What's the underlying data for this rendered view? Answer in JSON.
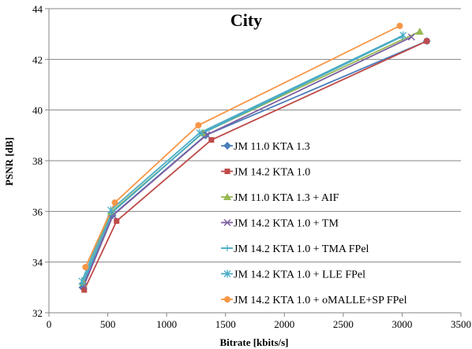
{
  "chart_data": {
    "type": "line",
    "title": "City",
    "xlabel": "Bitrate [kbits/s]",
    "ylabel": "PSNR [dB]",
    "xlim": [
      0,
      3500
    ],
    "ylim": [
      32,
      44
    ],
    "x_ticks": [
      "0",
      "500",
      "1000",
      "1500",
      "2000",
      "2500",
      "3000",
      "3500"
    ],
    "y_ticks": [
      "32",
      "34",
      "36",
      "38",
      "40",
      "42",
      "44"
    ],
    "grid": "horizontal",
    "legend_position": "inside-right",
    "series": [
      {
        "name": "JM 11.0 KTA 1.3",
        "color": "#4a7ebb",
        "marker": "diamond",
        "points": [
          [
            285,
            33.0
          ],
          [
            540,
            35.85
          ],
          [
            1330,
            39.0
          ],
          [
            3210,
            42.72
          ]
        ]
      },
      {
        "name": "JM 14.2 KTA 1.0",
        "color": "#be4b48",
        "marker": "square",
        "points": [
          [
            300,
            32.9
          ],
          [
            575,
            35.62
          ],
          [
            1380,
            38.82
          ],
          [
            3210,
            42.72
          ]
        ]
      },
      {
        "name": "JM 11.0 KTA 1.3 + AIF",
        "color": "#98b954",
        "marker": "triangle",
        "points": [
          [
            290,
            33.2
          ],
          [
            530,
            35.98
          ],
          [
            1310,
            39.1
          ],
          [
            3150,
            43.1
          ]
        ]
      },
      {
        "name": "JM 14.2 KTA 1.0 + TM",
        "color": "#7d60a0",
        "marker": "x",
        "points": [
          [
            295,
            33.05
          ],
          [
            545,
            35.85
          ],
          [
            1340,
            39.02
          ],
          [
            3080,
            42.88
          ]
        ]
      },
      {
        "name": "JM 14.2 KTA 1.0 + TMA FPel",
        "color": "#46aac5",
        "marker": "plus",
        "points": [
          [
            285,
            33.15
          ],
          [
            535,
            35.95
          ],
          [
            1300,
            39.08
          ],
          [
            3000,
            42.9
          ]
        ]
      },
      {
        "name": "JM 14.2 KTA 1.0 + LLE FPel",
        "color": "#4bacc6",
        "marker": "asterisk",
        "points": [
          [
            280,
            33.25
          ],
          [
            525,
            36.05
          ],
          [
            1280,
            39.1
          ],
          [
            3010,
            42.95
          ]
        ]
      },
      {
        "name": "JM 14.2 KTA 1.0 + oMALLE+SP FPel",
        "color": "#f79646",
        "marker": "circle",
        "points": [
          [
            310,
            33.8
          ],
          [
            560,
            36.35
          ],
          [
            1270,
            39.4
          ],
          [
            2980,
            43.32
          ]
        ]
      }
    ]
  }
}
